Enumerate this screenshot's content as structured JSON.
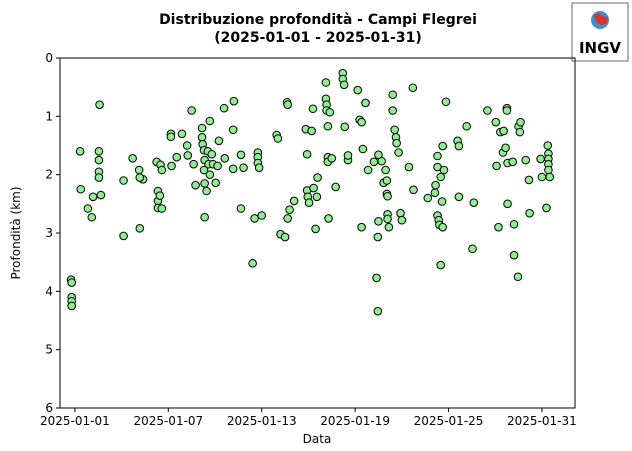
{
  "chart_data": {
    "type": "scatter",
    "title": "Distribuzione profondità - Campi Flegrei",
    "subtitle": "(2025-01-01 - 2025-01-31)",
    "xlabel": "Data",
    "ylabel": "Profondità (km)",
    "logo": "INGV",
    "color": "#90ee90",
    "edgecolor": "#000000",
    "ylim": [
      0,
      6
    ],
    "y_inverted": true,
    "yticks": [
      0,
      1,
      2,
      3,
      4,
      5,
      6
    ],
    "xlim": [
      "2024-12-31T01:00",
      "2025-02-02T03:00"
    ],
    "xticks": [
      "2025-01-01",
      "2025-01-07",
      "2025-01-13",
      "2025-01-19",
      "2025-01-25",
      "2025-01-31"
    ],
    "x": [
      "2024-12-31T18:00",
      "2024-12-31T19:00",
      "2024-12-31T19:00",
      "2024-12-31T19:00",
      "2024-12-31T19:00",
      "2025-01-01T08:00",
      "2025-01-01T09:00",
      "2025-01-01T20:00",
      "2025-01-02T02:00",
      "2025-01-02T04:00",
      "2025-01-02T14:00",
      "2025-01-02T13:00",
      "2025-01-02T13:00",
      "2025-01-02T13:00",
      "2025-01-02T13:00",
      "2025-01-02T16:00",
      "2025-01-04T03:00",
      "2025-01-04T03:00",
      "2025-01-04T17:00",
      "2025-01-05T03:00",
      "2025-01-05T04:00",
      "2025-01-05T09:00",
      "2025-01-05T04:00",
      "2025-01-06T06:00",
      "2025-01-06T08:00",
      "2025-01-06T08:00",
      "2025-01-06T08:00",
      "2025-01-06T14:00",
      "2025-01-06T12:00",
      "2025-01-06T14:00",
      "2025-01-06T11:00",
      "2025-01-07T04:00",
      "2025-01-07T04:00",
      "2025-01-07T05:00",
      "2025-01-07T13:00",
      "2025-01-07T21:00",
      "2025-01-08T05:00",
      "2025-01-08T06:00",
      "2025-01-08T12:00",
      "2025-01-08T15:00",
      "2025-01-08T18:00",
      "2025-01-09T04:00",
      "2025-01-09T04:00",
      "2025-01-09T05:00",
      "2025-01-09T07:00",
      "2025-01-09T08:00",
      "2025-01-09T07:00",
      "2025-01-09T08:00",
      "2025-01-09T08:00",
      "2025-01-09T11:00",
      "2025-01-09T13:00",
      "2025-01-09T16:00",
      "2025-01-09T14:00",
      "2025-01-09T16:00",
      "2025-01-09T19:00",
      "2025-01-09T21:00",
      "2025-01-10T01:00",
      "2025-01-10T04:00",
      "2025-01-10T06:00",
      "2025-01-10T14:00",
      "2025-01-10T15:00",
      "2025-01-11T04:00",
      "2025-01-11T04:00",
      "2025-01-11T05:00",
      "2025-01-11T16:00",
      "2025-01-11T16:00",
      "2025-01-11T20:00",
      "2025-01-12T10:00",
      "2025-01-12T13:00",
      "2025-01-12T18:00",
      "2025-01-12T18:00",
      "2025-01-12T18:00",
      "2025-01-12T20:00",
      "2025-01-13T00:00",
      "2025-01-13T23:00",
      "2025-01-14T01:00",
      "2025-01-14T05:00",
      "2025-01-14T12:00",
      "2025-01-14T15:00",
      "2025-01-14T16:00",
      "2025-01-14T16:00",
      "2025-01-14T19:00",
      "2025-01-15T02:00",
      "2025-01-15T20:00",
      "2025-01-15T22:00",
      "2025-01-15T22:00",
      "2025-01-15T23:00",
      "2025-01-16T01:00",
      "2025-01-16T05:00",
      "2025-01-16T07:00",
      "2025-01-16T08:00",
      "2025-01-16T11:00",
      "2025-01-16T13:00",
      "2025-01-16T14:00",
      "2025-01-17T03:00",
      "2025-01-17T03:00",
      "2025-01-17T04:00",
      "2025-01-17T04:00",
      "2025-01-17T06:00",
      "2025-01-17T06:00",
      "2025-01-17T06:00",
      "2025-01-17T07:00",
      "2025-01-17T09:00",
      "2025-01-17T12:00",
      "2025-01-17T18:00",
      "2025-01-18T05:00",
      "2025-01-18T05:00",
      "2025-01-18T07:00",
      "2025-01-18T08:00",
      "2025-01-18T13:00",
      "2025-01-18T13:00",
      "2025-01-19T04:00",
      "2025-01-19T07:00",
      "2025-01-19T10:00",
      "2025-01-19T10:00",
      "2025-01-19T12:00",
      "2025-01-19T16:00",
      "2025-01-19T20:00",
      "2025-01-20T05:00",
      "2025-01-20T09:00",
      "2025-01-20T11:00",
      "2025-01-20T11:00",
      "2025-01-20T12:00",
      "2025-01-20T12:00",
      "2025-01-20T17:00",
      "2025-01-20T20:00",
      "2025-01-20T23:00",
      "2025-01-21T01:00",
      "2025-01-21T01:00",
      "2025-01-21T02:00",
      "2025-01-21T02:00",
      "2025-01-21T02:00",
      "2025-01-21T04:00",
      "2025-01-21T10:00",
      "2025-01-21T10:00",
      "2025-01-21T13:00",
      "2025-01-21T15:00",
      "2025-01-21T16:00",
      "2025-01-21T19:00",
      "2025-01-21T22:00",
      "2025-01-22T00:00",
      "2025-01-22T11:00",
      "2025-01-22T17:00",
      "2025-01-22T18:00",
      "2025-01-23T16:00",
      "2025-01-24T03:00",
      "2025-01-24T04:00",
      "2025-01-24T07:00",
      "2025-01-24T07:00",
      "2025-01-24T07:00",
      "2025-01-24T09:00",
      "2025-01-24T10:00",
      "2025-01-24T12:00",
      "2025-01-24T12:00",
      "2025-01-24T15:00",
      "2025-01-24T17:00",
      "2025-01-24T14:00",
      "2025-01-24T15:00",
      "2025-01-24T20:00",
      "2025-01-25T14:00",
      "2025-01-25T16:00",
      "2025-01-25T16:00",
      "2025-01-26T04:00",
      "2025-01-26T13:00",
      "2025-01-26T15:00",
      "2025-01-27T12:00",
      "2025-01-28T01:00",
      "2025-01-28T02:00",
      "2025-01-28T05:00",
      "2025-01-28T08:00",
      "2025-01-28T12:00",
      "2025-01-28T13:00",
      "2025-01-28T16:00",
      "2025-01-28T18:00",
      "2025-01-28T18:00",
      "2025-01-28T19:00",
      "2025-01-28T19:00",
      "2025-01-29T03:00",
      "2025-01-29T05:00",
      "2025-01-29T05:00",
      "2025-01-29T11:00",
      "2025-01-29T12:00",
      "2025-01-29T14:00",
      "2025-01-29T15:00",
      "2025-01-29T23:00",
      "2025-01-30T04:00",
      "2025-01-30T05:00",
      "2025-01-30T22:00",
      "2025-01-31T00:00",
      "2025-01-31T07:00",
      "2025-01-31T09:00",
      "2025-01-31T10:00",
      "2025-01-31T10:00",
      "2025-01-31T10:00",
      "2025-01-31T10:00",
      "2025-01-31T12:00"
    ],
    "values": [
      3.8,
      3.85,
      4.1,
      4.17,
      4.25,
      1.6,
      2.25,
      2.58,
      2.73,
      2.38,
      0.8,
      1.6,
      1.75,
      1.95,
      2.05,
      2.35,
      3.05,
      2.1,
      1.72,
      1.92,
      2.92,
      2.08,
      2.05,
      1.78,
      2.28,
      2.45,
      2.57,
      2.58,
      1.83,
      1.92,
      2.36,
      1.3,
      1.35,
      1.85,
      1.7,
      1.3,
      1.5,
      1.67,
      0.9,
      1.82,
      2.18,
      1.2,
      1.36,
      1.48,
      1.58,
      1.75,
      1.92,
      2.15,
      2.73,
      2.28,
      1.6,
      1.08,
      1.82,
      2.0,
      1.65,
      1.82,
      2.14,
      1.85,
      1.42,
      0.86,
      1.72,
      1.9,
      1.23,
      0.74,
      1.66,
      2.58,
      1.88,
      3.52,
      2.75,
      1.62,
      1.7,
      1.8,
      1.88,
      2.7,
      1.32,
      1.38,
      3.02,
      3.07,
      0.76,
      0.8,
      2.75,
      2.6,
      2.45,
      1.22,
      1.65,
      2.27,
      2.38,
      2.48,
      1.25,
      0.87,
      2.23,
      2.93,
      2.38,
      2.05,
      0.42,
      0.7,
      0.8,
      0.9,
      1.17,
      1.7,
      1.78,
      2.75,
      0.93,
      1.72,
      2.21,
      0.26,
      0.36,
      0.46,
      1.18,
      1.75,
      1.67,
      0.55,
      1.06,
      1.1,
      2.9,
      1.56,
      0.77,
      1.92,
      1.78,
      3.77,
      4.34,
      3.07,
      2.8,
      1.66,
      1.77,
      2.14,
      1.92,
      2.1,
      2.33,
      2.37,
      2.68,
      2.76,
      2.9,
      0.63,
      0.9,
      1.23,
      1.36,
      1.46,
      1.62,
      2.66,
      2.78,
      1.87,
      0.51,
      2.26,
      2.4,
      2.31,
      2.18,
      1.87,
      1.68,
      2.7,
      2.78,
      2.86,
      3.55,
      2.04,
      1.51,
      1.92,
      2.46,
      2.9,
      0.75,
      1.42,
      1.51,
      2.38,
      1.17,
      3.27,
      2.48,
      0.9,
      1.1,
      1.85,
      2.9,
      1.27,
      1.62,
      1.25,
      1.54,
      0.86,
      0.9,
      1.8,
      2.5,
      1.78,
      2.85,
      3.38,
      3.75,
      1.17,
      1.27,
      1.1,
      1.75,
      2.09,
      2.66,
      1.73,
      2.04,
      2.57,
      1.5,
      1.64,
      1.73,
      1.82,
      1.92,
      2.04
    ]
  }
}
